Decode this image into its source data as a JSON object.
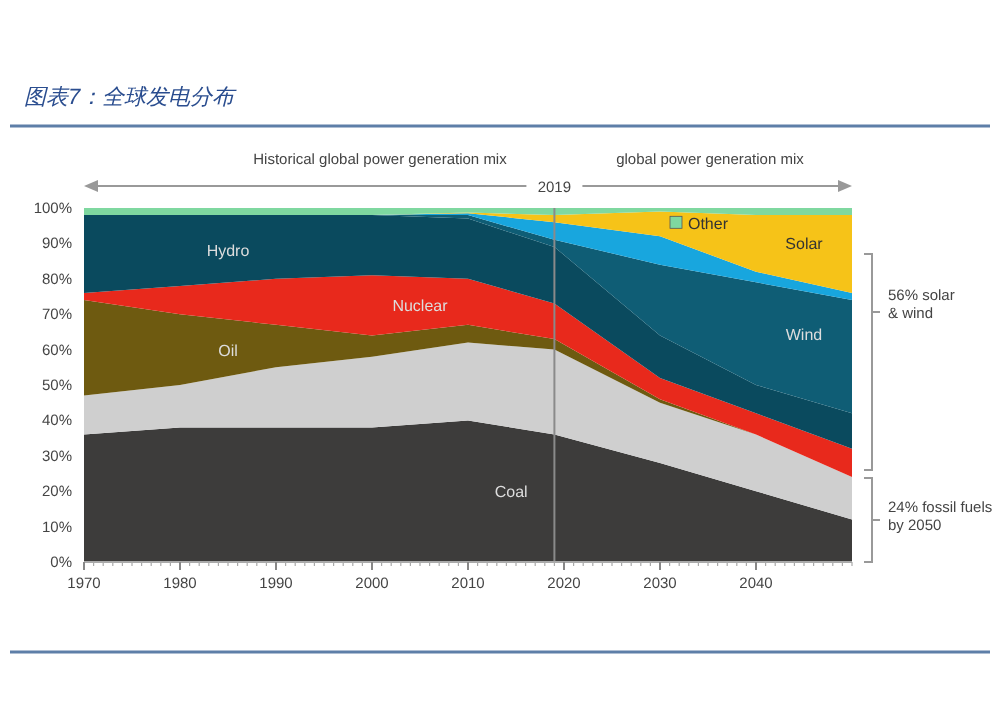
{
  "chart_data": {
    "type": "area",
    "stacked": true,
    "title": "图表7：全球发电分布",
    "annotations": [
      "Historical global power generation mix",
      "global power generation mix",
      "56% solar & wind",
      "24% fossil fuels by 2050"
    ],
    "x": [
      1970,
      1980,
      1990,
      2000,
      2010,
      2019,
      2030,
      2040,
      2050
    ],
    "series": [
      {
        "name": "Coal",
        "color": "#3d3c3b",
        "values": [
          36,
          38,
          38,
          38,
          40,
          36,
          28,
          20,
          12
        ]
      },
      {
        "color": "#cfcfcf",
        "values": [
          11,
          12,
          17,
          20,
          22,
          24,
          17,
          16,
          12
        ]
      },
      {
        "name": "Oil",
        "color": "#6e5a10",
        "values": [
          27,
          20,
          12,
          6,
          5,
          3,
          1,
          0,
          0
        ]
      },
      {
        "name": "Nuclear",
        "color": "#e8291c",
        "values": [
          2,
          8,
          13,
          17,
          13,
          10,
          6,
          6,
          8
        ]
      },
      {
        "name": "Hydro",
        "color": "#0a4a5e",
        "values": [
          22,
          20,
          18,
          17,
          17,
          16,
          12,
          8,
          10
        ]
      },
      {
        "name": "Wind",
        "color": "#0f5d75",
        "values": [
          0,
          0,
          0,
          0,
          1,
          2,
          20,
          29,
          32
        ]
      },
      {
        "color": "#18a6de",
        "values": [
          0,
          0,
          0,
          0,
          0.5,
          5,
          8,
          3,
          2
        ]
      },
      {
        "name": "Solar",
        "color": "#f6c318",
        "values": [
          0,
          0,
          0,
          0,
          0.2,
          2,
          7,
          16,
          22
        ]
      },
      {
        "name": "Other",
        "color": "#7fd8a0",
        "values": [
          2,
          2,
          2,
          2,
          1.3,
          2,
          1,
          2,
          2
        ]
      }
    ],
    "xlim": [
      1970,
      2050
    ],
    "xticks": [
      1970,
      1980,
      1990,
      2000,
      2010,
      2020,
      2030,
      2040
    ],
    "ylim": [
      0,
      100
    ],
    "yticks": [
      {
        "value": 0,
        "label": "0%"
      },
      {
        "value": 10,
        "label": "10%"
      },
      {
        "value": 20,
        "label": "20%"
      },
      {
        "value": 30,
        "label": "30%"
      },
      {
        "value": 40,
        "label": "40%"
      },
      {
        "value": 50,
        "label": "50%"
      },
      {
        "value": 60,
        "label": "60%"
      },
      {
        "value": 70,
        "label": "70%"
      },
      {
        "value": 80,
        "label": "80%"
      },
      {
        "value": 90,
        "label": "90%"
      },
      {
        "value": 100,
        "label": "100%"
      }
    ],
    "ref_lines": [
      {
        "axis": "x",
        "value": 2019,
        "label": "2019",
        "color": "#8a8a8a"
      }
    ],
    "grid": false
  }
}
